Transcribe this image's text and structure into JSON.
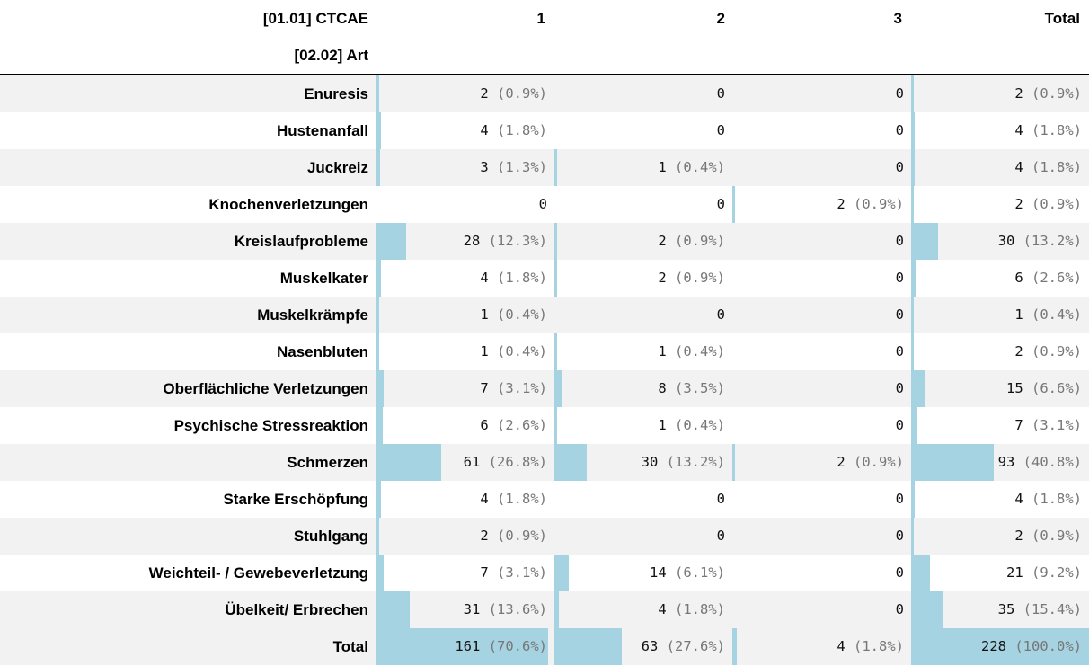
{
  "header": {
    "row_var": "[01.01] CTCAE",
    "col_var": "[02.02] Art",
    "columns": [
      "1",
      "2",
      "3",
      "Total"
    ]
  },
  "rows": [
    {
      "label": "Enuresis",
      "cells": [
        {
          "n": "2",
          "p": "(0.9%)",
          "f": 0.009
        },
        {
          "n": "0",
          "p": "",
          "f": 0
        },
        {
          "n": "0",
          "p": "",
          "f": 0
        },
        {
          "n": "2",
          "p": "(0.9%)",
          "f": 0.009
        }
      ]
    },
    {
      "label": "Hustenanfall",
      "cells": [
        {
          "n": "4",
          "p": "(1.8%)",
          "f": 0.018
        },
        {
          "n": "0",
          "p": "",
          "f": 0
        },
        {
          "n": "0",
          "p": "",
          "f": 0
        },
        {
          "n": "4",
          "p": "(1.8%)",
          "f": 0.018
        }
      ]
    },
    {
      "label": "Juckreiz",
      "cells": [
        {
          "n": "3",
          "p": "(1.3%)",
          "f": 0.013
        },
        {
          "n": "1",
          "p": "(0.4%)",
          "f": 0.004
        },
        {
          "n": "0",
          "p": "",
          "f": 0
        },
        {
          "n": "4",
          "p": "(1.8%)",
          "f": 0.018
        }
      ]
    },
    {
      "label": "Knochenverletzungen",
      "cells": [
        {
          "n": "0",
          "p": "",
          "f": 0
        },
        {
          "n": "0",
          "p": "",
          "f": 0
        },
        {
          "n": "2",
          "p": "(0.9%)",
          "f": 0.009
        },
        {
          "n": "2",
          "p": "(0.9%)",
          "f": 0.009
        }
      ]
    },
    {
      "label": "Kreislaufprobleme",
      "cells": [
        {
          "n": "28",
          "p": "(12.3%)",
          "f": 0.123
        },
        {
          "n": "2",
          "p": "(0.9%)",
          "f": 0.009
        },
        {
          "n": "0",
          "p": "",
          "f": 0
        },
        {
          "n": "30",
          "p": "(13.2%)",
          "f": 0.132
        }
      ]
    },
    {
      "label": "Muskelkater",
      "cells": [
        {
          "n": "4",
          "p": "(1.8%)",
          "f": 0.018
        },
        {
          "n": "2",
          "p": "(0.9%)",
          "f": 0.009
        },
        {
          "n": "0",
          "p": "",
          "f": 0
        },
        {
          "n": "6",
          "p": "(2.6%)",
          "f": 0.026
        }
      ]
    },
    {
      "label": "Muskelkrämpfe",
      "cells": [
        {
          "n": "1",
          "p": "(0.4%)",
          "f": 0.004
        },
        {
          "n": "0",
          "p": "",
          "f": 0
        },
        {
          "n": "0",
          "p": "",
          "f": 0
        },
        {
          "n": "1",
          "p": "(0.4%)",
          "f": 0.004
        }
      ]
    },
    {
      "label": "Nasenbluten",
      "cells": [
        {
          "n": "1",
          "p": "(0.4%)",
          "f": 0.004
        },
        {
          "n": "1",
          "p": "(0.4%)",
          "f": 0.004
        },
        {
          "n": "0",
          "p": "",
          "f": 0
        },
        {
          "n": "2",
          "p": "(0.9%)",
          "f": 0.009
        }
      ]
    },
    {
      "label": "Oberflächliche Verletzungen",
      "cells": [
        {
          "n": "7",
          "p": "(3.1%)",
          "f": 0.031
        },
        {
          "n": "8",
          "p": "(3.5%)",
          "f": 0.035
        },
        {
          "n": "0",
          "p": "",
          "f": 0
        },
        {
          "n": "15",
          "p": "(6.6%)",
          "f": 0.066
        }
      ]
    },
    {
      "label": "Psychische Stressreaktion",
      "cells": [
        {
          "n": "6",
          "p": "(2.6%)",
          "f": 0.026
        },
        {
          "n": "1",
          "p": "(0.4%)",
          "f": 0.004
        },
        {
          "n": "0",
          "p": "",
          "f": 0
        },
        {
          "n": "7",
          "p": "(3.1%)",
          "f": 0.031
        }
      ]
    },
    {
      "label": "Schmerzen",
      "cells": [
        {
          "n": "61",
          "p": "(26.8%)",
          "f": 0.268
        },
        {
          "n": "30",
          "p": "(13.2%)",
          "f": 0.132
        },
        {
          "n": "2",
          "p": "(0.9%)",
          "f": 0.009
        },
        {
          "n": "93",
          "p": "(40.8%)",
          "f": 0.408
        }
      ]
    },
    {
      "label": "Starke Erschöpfung",
      "cells": [
        {
          "n": "4",
          "p": "(1.8%)",
          "f": 0.018
        },
        {
          "n": "0",
          "p": "",
          "f": 0
        },
        {
          "n": "0",
          "p": "",
          "f": 0
        },
        {
          "n": "4",
          "p": "(1.8%)",
          "f": 0.018
        }
      ]
    },
    {
      "label": "Stuhlgang",
      "cells": [
        {
          "n": "2",
          "p": "(0.9%)",
          "f": 0.009
        },
        {
          "n": "0",
          "p": "",
          "f": 0
        },
        {
          "n": "0",
          "p": "",
          "f": 0
        },
        {
          "n": "2",
          "p": "(0.9%)",
          "f": 0.009
        }
      ]
    },
    {
      "label": "Weichteil- / Gewebeverletzung",
      "cells": [
        {
          "n": "7",
          "p": "(3.1%)",
          "f": 0.031
        },
        {
          "n": "14",
          "p": "(6.1%)",
          "f": 0.061
        },
        {
          "n": "0",
          "p": "",
          "f": 0
        },
        {
          "n": "21",
          "p": "(9.2%)",
          "f": 0.092
        }
      ]
    },
    {
      "label": "Übelkeit/ Erbrechen",
      "cells": [
        {
          "n": "31",
          "p": "(13.6%)",
          "f": 0.136
        },
        {
          "n": "4",
          "p": "(1.8%)",
          "f": 0.018
        },
        {
          "n": "0",
          "p": "",
          "f": 0
        },
        {
          "n": "35",
          "p": "(15.4%)",
          "f": 0.154
        }
      ]
    }
  ],
  "total": {
    "label": "Total",
    "cells": [
      {
        "n": "161",
        "p": "(70.6%)",
        "f": 0.706
      },
      {
        "n": "63",
        "p": "(27.6%)",
        "f": 0.276
      },
      {
        "n": "4",
        "p": "(1.8%)",
        "f": 0.018
      },
      {
        "n": "228",
        "p": "(100.0%)",
        "f": 1.0
      }
    ]
  },
  "colors": {
    "bar": "#a5d3e2",
    "stripe": "#f2f2f2",
    "pct_text": "#777777"
  }
}
